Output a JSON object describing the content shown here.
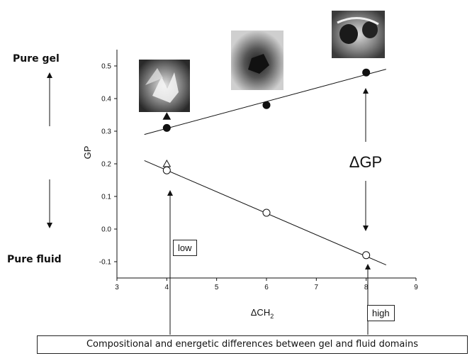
{
  "chart_data": {
    "type": "scatter",
    "xlabel": "ΔCH",
    "xlabel_sub": "2",
    "ylabel": "GP",
    "xlim": [
      3,
      9
    ],
    "ylim": [
      -0.15,
      0.55
    ],
    "xticks": [
      3,
      4,
      5,
      6,
      7,
      8,
      9
    ],
    "yticks": [
      -0.1,
      0.0,
      0.1,
      0.2,
      0.3,
      0.4,
      0.5
    ],
    "grid": false,
    "series": [
      {
        "marker": "filled-circle",
        "x": [
          4,
          6,
          8
        ],
        "y": [
          0.31,
          0.38,
          0.48
        ],
        "fit": {
          "x": [
            3.55,
            8.4
          ],
          "y": [
            0.29,
            0.49
          ]
        }
      },
      {
        "marker": "open-circle",
        "x": [
          4,
          6,
          8
        ],
        "y": [
          0.18,
          0.05,
          -0.08
        ],
        "fit": {
          "x": [
            3.55,
            8.4
          ],
          "y": [
            0.21,
            -0.11
          ]
        }
      }
    ],
    "extra_markers": [
      {
        "marker": "filled-triangle",
        "x": 4,
        "y": 0.345
      },
      {
        "marker": "open-triangle",
        "x": 4,
        "y": 0.2
      }
    ],
    "annotations": {
      "delta_gp": "ΔGP",
      "low": "low",
      "high": "high"
    }
  },
  "side_labels": {
    "top": "Pure gel",
    "bottom": "Pure fluid"
  },
  "caption": "Compositional and energetic differences between gel and fluid domains"
}
